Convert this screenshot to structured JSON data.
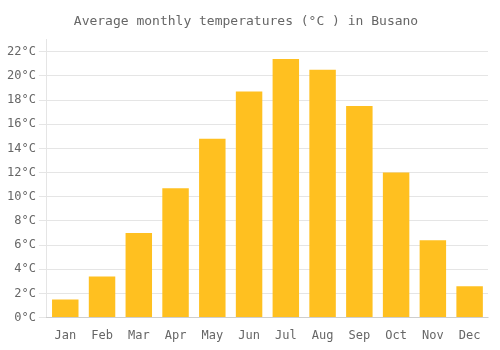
{
  "chart_data": {
    "type": "bar",
    "title": "Average monthly temperatures (°C ) in Busano",
    "categories": [
      "Jan",
      "Feb",
      "Mar",
      "Apr",
      "May",
      "Jun",
      "Jul",
      "Aug",
      "Sep",
      "Oct",
      "Nov",
      "Dec"
    ],
    "values": [
      1.5,
      3.4,
      7.0,
      10.7,
      14.8,
      18.7,
      21.4,
      20.5,
      17.5,
      12.0,
      6.4,
      2.6
    ],
    "color": "#FFC020",
    "ylim": [
      0,
      23
    ],
    "yticks": [
      {
        "value": 0,
        "label": "0°C"
      },
      {
        "value": 2,
        "label": "2°C"
      },
      {
        "value": 4,
        "label": "4°C"
      },
      {
        "value": 6,
        "label": "6°C"
      },
      {
        "value": 8,
        "label": "8°C"
      },
      {
        "value": 10,
        "label": "10°C"
      },
      {
        "value": 12,
        "label": "12°C"
      },
      {
        "value": 14,
        "label": "14°C"
      },
      {
        "value": 16,
        "label": "16°C"
      },
      {
        "value": 18,
        "label": "18°C"
      },
      {
        "value": 20,
        "label": "20°C"
      },
      {
        "value": 22,
        "label": "22°C"
      }
    ],
    "grid": true
  }
}
